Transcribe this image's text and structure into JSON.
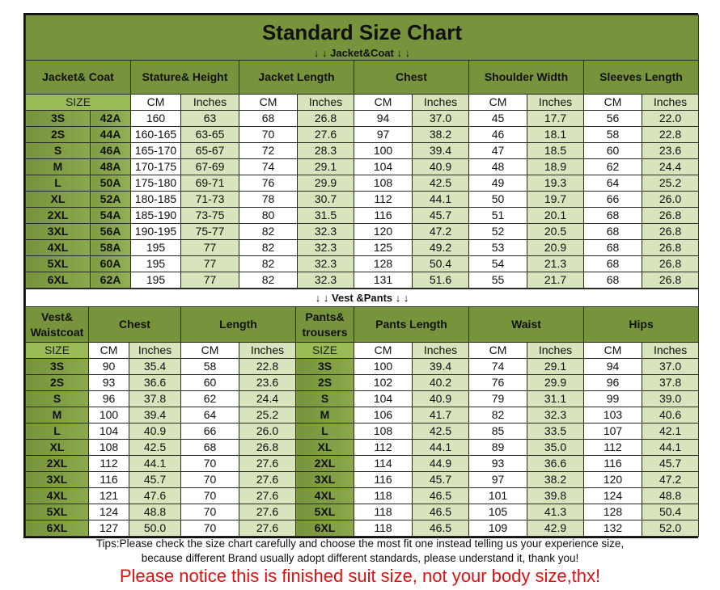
{
  "title": "Standard Size Chart",
  "jacket_section_label": "↓ ↓  Jacket&Coat ↓ ↓",
  "vest_pants_section_label": "↓ ↓  Vest &Pants ↓ ↓",
  "colors": {
    "header_green": "#77933c",
    "inches_green": "#d7e4bc",
    "size_sub_green": "#9bbb59",
    "notice_red": "#e01010"
  },
  "jacket": {
    "headers": [
      "Jacket& Coat",
      "Stature& Height",
      "Jacket Length",
      "Chest",
      "Shoulder Width",
      "Sleeves Length"
    ],
    "subheaders": [
      "SIZE",
      "CM",
      "Inches",
      "CM",
      "Inches",
      "CM",
      "Inches",
      "CM",
      "Inches",
      "CM",
      "Inches"
    ],
    "rows": [
      [
        "3S",
        "42A",
        "160",
        "63",
        "68",
        "26.8",
        "94",
        "37.0",
        "45",
        "17.7",
        "56",
        "22.0"
      ],
      [
        "2S",
        "44A",
        "160-165",
        "63-65",
        "70",
        "27.6",
        "97",
        "38.2",
        "46",
        "18.1",
        "58",
        "22.8"
      ],
      [
        "S",
        "46A",
        "165-170",
        "65-67",
        "72",
        "28.3",
        "100",
        "39.4",
        "47",
        "18.5",
        "60",
        "23.6"
      ],
      [
        "M",
        "48A",
        "170-175",
        "67-69",
        "74",
        "29.1",
        "104",
        "40.9",
        "48",
        "18.9",
        "62",
        "24.4"
      ],
      [
        "L",
        "50A",
        "175-180",
        "69-71",
        "76",
        "29.9",
        "108",
        "42.5",
        "49",
        "19.3",
        "64",
        "25.2"
      ],
      [
        "XL",
        "52A",
        "180-185",
        "71-73",
        "78",
        "30.7",
        "112",
        "44.1",
        "50",
        "19.7",
        "66",
        "26.0"
      ],
      [
        "2XL",
        "54A",
        "185-190",
        "73-75",
        "80",
        "31.5",
        "116",
        "45.7",
        "51",
        "20.1",
        "68",
        "26.8"
      ],
      [
        "3XL",
        "56A",
        "190-195",
        "75-77",
        "82",
        "32.3",
        "120",
        "47.2",
        "52",
        "20.5",
        "68",
        "26.8"
      ],
      [
        "4XL",
        "58A",
        "195",
        "77",
        "82",
        "32.3",
        "125",
        "49.2",
        "53",
        "20.9",
        "68",
        "26.8"
      ],
      [
        "5XL",
        "60A",
        "195",
        "77",
        "82",
        "32.3",
        "128",
        "50.4",
        "54",
        "21.3",
        "68",
        "26.8"
      ],
      [
        "6XL",
        "62A",
        "195",
        "77",
        "82",
        "32.3",
        "131",
        "51.6",
        "55",
        "21.7",
        "68",
        "26.8"
      ]
    ]
  },
  "vest_pants": {
    "headers": [
      "Vest& Waistcoat",
      "Chest",
      "Length",
      "Pants& trousers",
      "Pants Length",
      "Waist",
      "Hips"
    ],
    "subheaders": [
      "SIZE",
      "CM",
      "Inches",
      "CM",
      "Inches",
      "SIZE",
      "CM",
      "Inches",
      "CM",
      "Inches",
      "CM",
      "Inches"
    ],
    "rows": [
      [
        "3S",
        "90",
        "35.4",
        "58",
        "22.8",
        "3S",
        "100",
        "39.4",
        "74",
        "29.1",
        "94",
        "37.0"
      ],
      [
        "2S",
        "93",
        "36.6",
        "60",
        "23.6",
        "2S",
        "102",
        "40.2",
        "76",
        "29.9",
        "96",
        "37.8"
      ],
      [
        "S",
        "96",
        "37.8",
        "62",
        "24.4",
        "S",
        "104",
        "40.9",
        "79",
        "31.1",
        "99",
        "39.0"
      ],
      [
        "M",
        "100",
        "39.4",
        "64",
        "25.2",
        "M",
        "106",
        "41.7",
        "82",
        "32.3",
        "103",
        "40.6"
      ],
      [
        "L",
        "104",
        "40.9",
        "66",
        "26.0",
        "L",
        "108",
        "42.5",
        "85",
        "33.5",
        "107",
        "42.1"
      ],
      [
        "XL",
        "108",
        "42.5",
        "68",
        "26.8",
        "XL",
        "112",
        "44.1",
        "89",
        "35.0",
        "112",
        "44.1"
      ],
      [
        "2XL",
        "112",
        "44.1",
        "70",
        "27.6",
        "2XL",
        "114",
        "44.9",
        "93",
        "36.6",
        "116",
        "45.7"
      ],
      [
        "3XL",
        "116",
        "45.7",
        "70",
        "27.6",
        "3XL",
        "116",
        "45.7",
        "97",
        "38.2",
        "120",
        "47.2"
      ],
      [
        "4XL",
        "121",
        "47.6",
        "70",
        "27.6",
        "4XL",
        "118",
        "46.5",
        "101",
        "39.8",
        "124",
        "48.8"
      ],
      [
        "5XL",
        "124",
        "48.8",
        "70",
        "27.6",
        "5XL",
        "118",
        "46.5",
        "105",
        "41.3",
        "128",
        "50.4"
      ],
      [
        "6XL",
        "127",
        "50.0",
        "70",
        "27.6",
        "6XL",
        "118",
        "46.5",
        "109",
        "42.9",
        "132",
        "52.0"
      ]
    ]
  },
  "tips": {
    "line1": "Tips:Please check the size chart carefully and choose the most fit one instead telling us your experience size,",
    "line2": "because different Brand usually adopt different standards, please understand it, thank you!"
  },
  "notice": "Please notice this is finished suit size, not your body size,thx!"
}
